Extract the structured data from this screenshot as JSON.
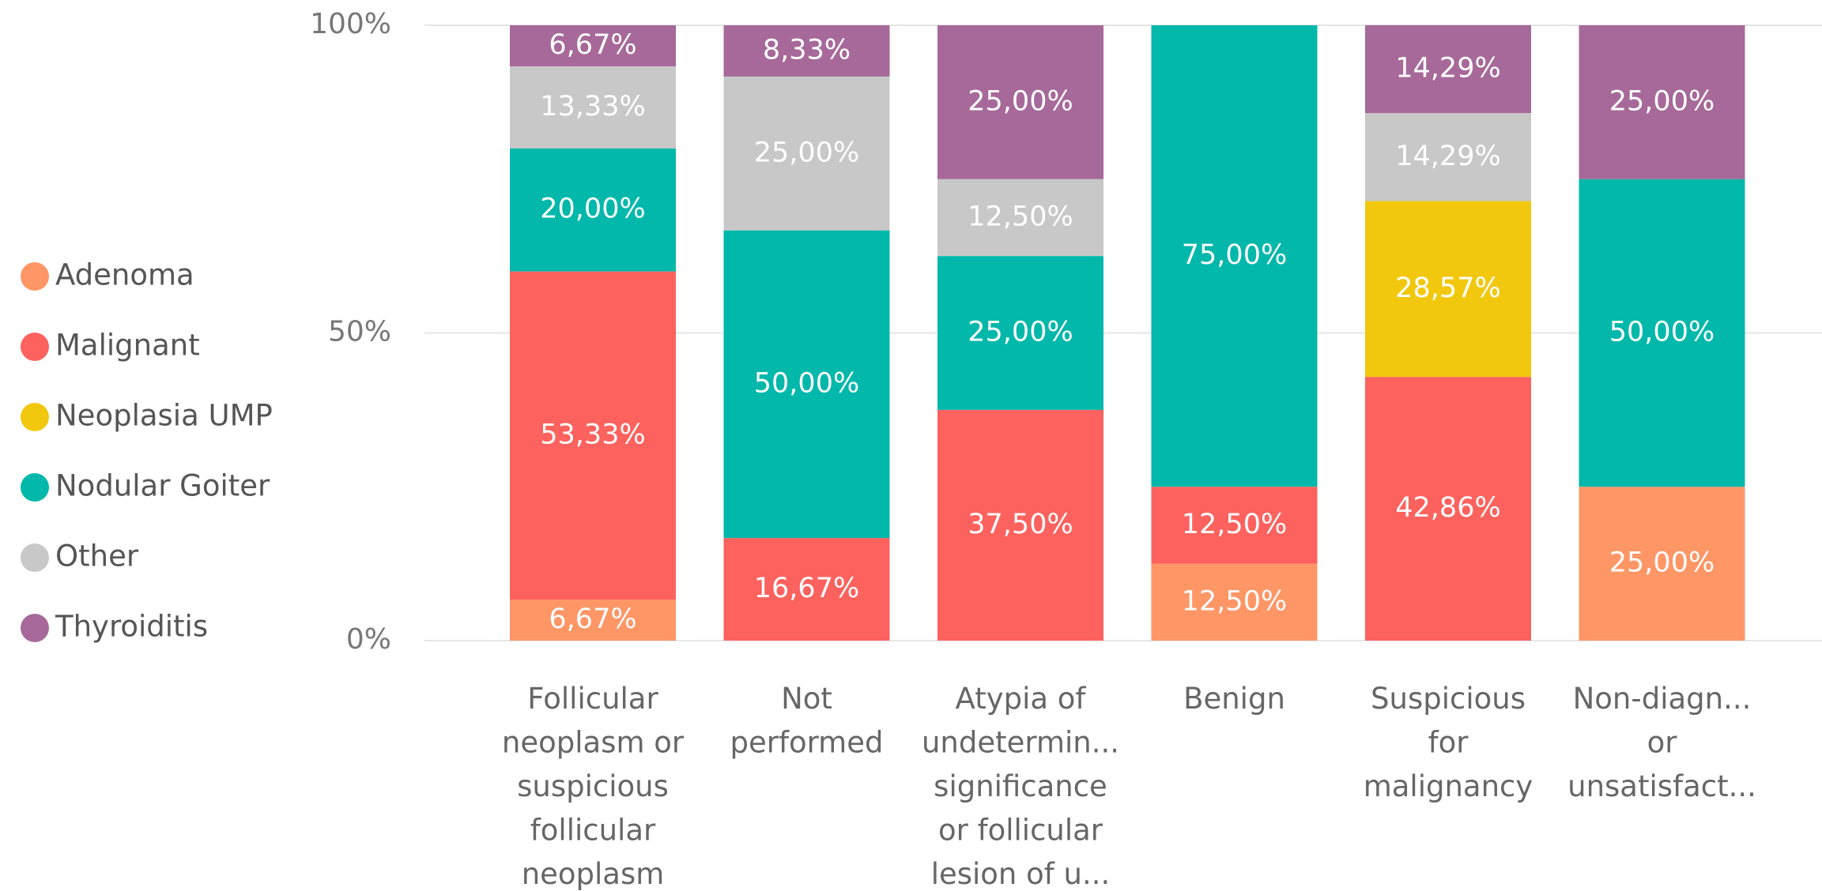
{
  "chart_data": {
    "type": "stacked_bar_100",
    "categories": [
      [
        "Follicular",
        "neoplasm or",
        "suspicious",
        "follicular",
        "neoplasm"
      ],
      [
        "Not",
        "performed"
      ],
      [
        "Atypia of",
        "undetermin...",
        "significance",
        "or follicular",
        "lesion of u..."
      ],
      [
        "Benign"
      ],
      [
        "Suspicious",
        "for",
        "malignancy"
      ],
      [
        "Non-diagn...",
        "or",
        "unsatisfact..."
      ]
    ],
    "series": [
      {
        "name": "Adenoma",
        "color": "#fe9666",
        "values": [
          6.67,
          null,
          null,
          12.5,
          null,
          25
        ],
        "value_labels": [
          "6,67%",
          null,
          null,
          "12,50%",
          null,
          "25,00%"
        ]
      },
      {
        "name": "Malignant",
        "color": "#fd625e",
        "values": [
          53.33,
          16.67,
          37.5,
          12.5,
          42.86,
          null
        ],
        "value_labels": [
          "53,33%",
          "16,67%",
          "37,50%",
          "12,50%",
          "42,86%",
          null
        ]
      },
      {
        "name": "Neoplasia UMP",
        "color": "#f2c80f",
        "values": [
          null,
          null,
          null,
          null,
          28.57,
          null
        ],
        "value_labels": [
          null,
          null,
          null,
          null,
          "28,57%",
          null
        ]
      },
      {
        "name": "Nodular Goiter",
        "color": "#01b8aa",
        "values": [
          20,
          50,
          25,
          75,
          null,
          50
        ],
        "value_labels": [
          "20,00%",
          "50,00%",
          "25,00%",
          "75,00%",
          null,
          "50,00%"
        ]
      },
      {
        "name": "Other",
        "color": "#c8c8c8",
        "values": [
          13.33,
          25,
          12.5,
          null,
          14.29,
          null
        ],
        "value_labels": [
          "13,33%",
          "25,00%",
          "12,50%",
          null,
          "14,29%",
          null
        ]
      },
      {
        "name": "Thyroiditis",
        "color": "#a66999",
        "values": [
          6.67,
          8.33,
          25,
          null,
          14.29,
          25
        ],
        "value_labels": [
          "6,67%",
          "8,33%",
          "25,00%",
          null,
          "14,29%",
          "25,00%"
        ]
      }
    ],
    "ylim": [
      0,
      100
    ],
    "yticks": [
      {
        "value": 0,
        "label": "0%"
      },
      {
        "value": 50,
        "label": "50%"
      },
      {
        "value": 100,
        "label": "100%"
      }
    ],
    "grid": true,
    "legend": "left"
  }
}
